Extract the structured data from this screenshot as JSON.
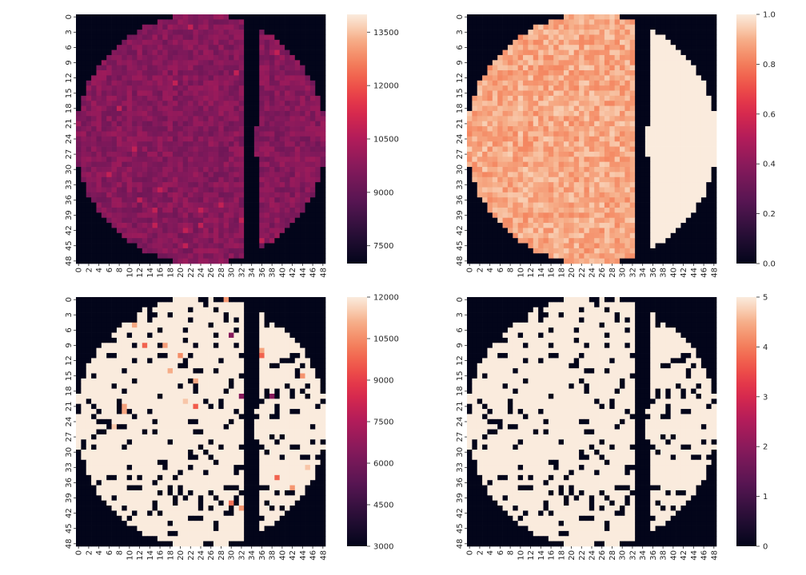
{
  "figure": {
    "background": "#ffffff",
    "panels": 4,
    "layout": "2x2"
  },
  "chart_data": [
    {
      "type": "heatmap",
      "title": "",
      "xlabel": "",
      "ylabel": "",
      "grid": "49x49",
      "colormap": "rocket",
      "x_ticks": [
        "0",
        "2",
        "4",
        "6",
        "8",
        "10",
        "12",
        "14",
        "16",
        "18",
        "20",
        "22",
        "24",
        "26",
        "28",
        "30",
        "32",
        "34",
        "36",
        "38",
        "40",
        "42",
        "44",
        "46",
        "48"
      ],
      "y_ticks": [
        "0",
        "3",
        "6",
        "9",
        "12",
        "15",
        "18",
        "21",
        "24",
        "27",
        "30",
        "33",
        "36",
        "39",
        "42",
        "45",
        "48"
      ],
      "colorbar": {
        "vmin": 7000,
        "vmax": 14000,
        "ticks": [
          "7500",
          "9000",
          "10500",
          "12000",
          "13500"
        ]
      },
      "description_values": {
        "inside_typical": 9700,
        "outside": 7000
      },
      "mask": "circle with vertical gap near column 33-35"
    },
    {
      "type": "heatmap",
      "title": "",
      "xlabel": "",
      "ylabel": "",
      "grid": "49x49",
      "colormap": "rocket",
      "x_ticks": [
        "0",
        "2",
        "4",
        "6",
        "8",
        "10",
        "12",
        "14",
        "16",
        "18",
        "20",
        "22",
        "24",
        "26",
        "28",
        "30",
        "32",
        "34",
        "36",
        "38",
        "40",
        "42",
        "44",
        "46",
        "48"
      ],
      "y_ticks": [
        "0",
        "3",
        "6",
        "9",
        "12",
        "15",
        "18",
        "21",
        "24",
        "27",
        "30",
        "33",
        "36",
        "39",
        "42",
        "45",
        "48"
      ],
      "colorbar": {
        "vmin": 0.0,
        "vmax": 1.0,
        "ticks": [
          "0.0",
          "0.2",
          "0.4",
          "0.6",
          "0.8",
          "1.0"
        ]
      },
      "description_values": {
        "left_region_range": [
          0.82,
          0.95
        ],
        "right_region": 1.0,
        "outside": 0.0
      }
    },
    {
      "type": "heatmap",
      "title": "",
      "xlabel": "",
      "ylabel": "",
      "grid": "49x49",
      "colormap": "rocket",
      "x_ticks": [
        "0",
        "2",
        "4",
        "6",
        "8",
        "10",
        "12",
        "14",
        "16",
        "18",
        "20",
        "22",
        "24",
        "26",
        "28",
        "30",
        "32",
        "34",
        "36",
        "38",
        "40",
        "42",
        "44",
        "46",
        "48"
      ],
      "y_ticks": [
        "0",
        "3",
        "6",
        "9",
        "12",
        "15",
        "18",
        "21",
        "24",
        "27",
        "30",
        "33",
        "36",
        "39",
        "42",
        "45",
        "48"
      ],
      "colorbar": {
        "vmin": 3000,
        "vmax": 12000,
        "ticks": [
          "3000",
          "4500",
          "6000",
          "7500",
          "9000",
          "10500",
          "12000"
        ]
      },
      "description_values": {
        "inside_typical": 12000,
        "dead_pixels": 3000,
        "dead_fraction": 0.13
      }
    },
    {
      "type": "heatmap",
      "title": "",
      "xlabel": "",
      "ylabel": "",
      "grid": "49x49",
      "colormap": "rocket",
      "x_ticks": [
        "0",
        "2",
        "4",
        "6",
        "8",
        "10",
        "12",
        "14",
        "16",
        "18",
        "20",
        "22",
        "24",
        "26",
        "28",
        "30",
        "32",
        "34",
        "36",
        "38",
        "40",
        "42",
        "44",
        "46",
        "48"
      ],
      "y_ticks": [
        "0",
        "3",
        "6",
        "9",
        "12",
        "15",
        "18",
        "21",
        "24",
        "27",
        "30",
        "33",
        "36",
        "39",
        "42",
        "45",
        "48"
      ],
      "colorbar": {
        "vmin": 0,
        "vmax": 5,
        "ticks": [
          "0",
          "1",
          "2",
          "3",
          "4",
          "5"
        ]
      },
      "description_values": {
        "inside_typical": 5,
        "dead_pixels": 0,
        "dead_fraction": 0.13
      }
    }
  ]
}
